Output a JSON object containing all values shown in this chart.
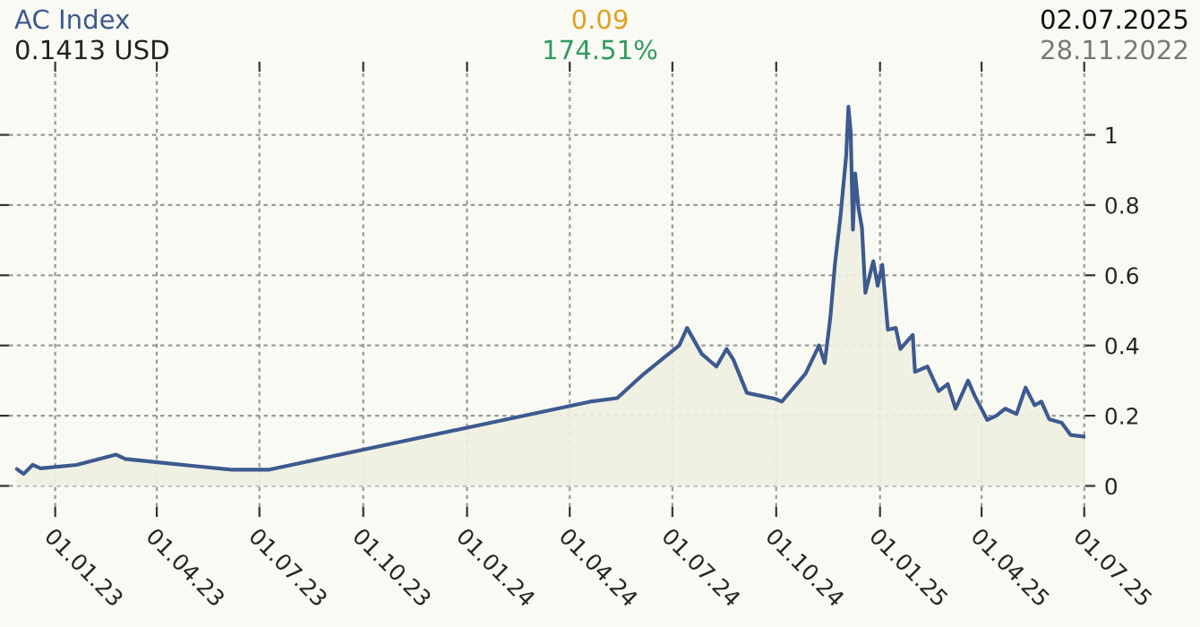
{
  "chart_data": {
    "type": "area",
    "title": "AC Index",
    "subtitle": "0.1413 USD",
    "annotations": [
      "0.09",
      "174.51%",
      "02.07.2025",
      "28.11.2022"
    ],
    "x": [
      "2022-11-28",
      "2022-12-04",
      "2022-12-12",
      "2022-12-19",
      "2023-01-20",
      "2023-02-24",
      "2023-03-04",
      "2023-03-31",
      "2023-05-06",
      "2023-06-07",
      "2023-07-09",
      "2024-04-19",
      "2024-05-13",
      "2024-06-06",
      "2024-07-07",
      "2024-07-14",
      "2024-07-27",
      "2024-08-09",
      "2024-08-18",
      "2024-08-24",
      "2024-09-05",
      "2024-09-30",
      "2024-10-06",
      "2024-10-27",
      "2024-11-08",
      "2024-11-13",
      "2024-11-18",
      "2024-11-22",
      "2024-11-27",
      "2024-12-02",
      "2024-12-04",
      "2024-12-06",
      "2024-12-08",
      "2024-12-10",
      "2024-12-13",
      "2024-12-16",
      "2024-12-19",
      "2024-12-26",
      "2024-12-30",
      "2025-01-03",
      "2025-01-08",
      "2025-01-15",
      "2025-01-19",
      "2025-01-30",
      "2025-02-01",
      "2025-02-12",
      "2025-02-22",
      "2025-03-02",
      "2025-03-09",
      "2025-03-20",
      "2025-03-26",
      "2025-04-06",
      "2025-04-14",
      "2025-04-22",
      "2025-05-02",
      "2025-05-10",
      "2025-05-18",
      "2025-05-24",
      "2025-05-31",
      "2025-06-11",
      "2025-06-19",
      "2025-07-02"
    ],
    "series": [
      {
        "color": "#3d5a8f",
        "values": [
          0.048,
          0.034,
          0.06,
          0.05,
          0.06,
          0.089,
          0.077,
          0.068,
          0.056,
          0.046,
          0.046,
          0.24,
          0.25,
          0.32,
          0.4,
          0.45,
          0.376,
          0.34,
          0.39,
          0.36,
          0.265,
          0.248,
          0.24,
          0.32,
          0.4,
          0.35,
          0.48,
          0.63,
          0.77,
          0.94,
          1.08,
          1.01,
          0.73,
          0.89,
          0.79,
          0.735,
          0.55,
          0.64,
          0.57,
          0.63,
          0.445,
          0.45,
          0.39,
          0.43,
          0.325,
          0.34,
          0.27,
          0.29,
          0.22,
          0.3,
          0.256,
          0.188,
          0.2,
          0.22,
          0.205,
          0.28,
          0.23,
          0.24,
          0.19,
          0.18,
          0.145,
          0.14
        ]
      }
    ],
    "xlim": [
      "2022-11-21",
      "2025-07-02"
    ],
    "xticks": [
      {
        "value": "2023-01-01",
        "label": "01.01.23"
      },
      {
        "value": "2023-04-01",
        "label": "01.04.23"
      },
      {
        "value": "2023-07-01",
        "label": "01.07.23"
      },
      {
        "value": "2023-10-01",
        "label": "01.10.23"
      },
      {
        "value": "2024-01-01",
        "label": "01.01.24"
      },
      {
        "value": "2024-04-01",
        "label": "01.04.24"
      },
      {
        "value": "2024-07-01",
        "label": "01.07.24"
      },
      {
        "value": "2024-10-01",
        "label": "01.10.24"
      },
      {
        "value": "2025-01-01",
        "label": "01.01.25"
      },
      {
        "value": "2025-04-01",
        "label": "01.04.25"
      },
      {
        "value": "2025-07-01",
        "label": "01.07.25"
      }
    ],
    "ylim": [
      -0.06,
      1.18
    ],
    "yticks": [
      0,
      {
        "value": 0.2,
        "label": "0.2"
      },
      {
        "value": 0.4,
        "label": "0.4"
      },
      {
        "value": 0.6,
        "label": "0.6"
      },
      {
        "value": 0.8,
        "label": "0.8"
      },
      1
    ],
    "grid": true
  }
}
